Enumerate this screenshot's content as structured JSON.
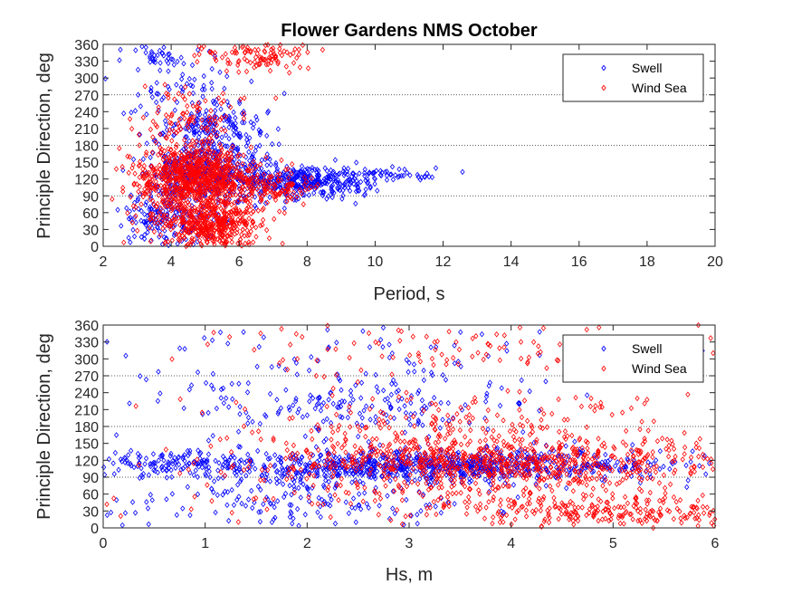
{
  "colors": {
    "swell": "#0000ff",
    "wind_sea": "#ff0000",
    "axis": "#262626",
    "grid": "#262626"
  },
  "chart_data": [
    {
      "type": "scatter",
      "title": "Flower Gardens NMS October",
      "xlabel": "Period, s",
      "ylabel": "Principle Direction, deg",
      "xlim": [
        2,
        20
      ],
      "ylim": [
        0,
        360
      ],
      "xticks": [
        2,
        4,
        6,
        8,
        10,
        12,
        14,
        16,
        18,
        20
      ],
      "yticks": [
        0,
        30,
        60,
        90,
        120,
        150,
        180,
        210,
        240,
        270,
        300,
        330,
        360
      ],
      "grid_y_dotted": [
        90,
        180,
        270
      ],
      "legend": {
        "position": "top-right",
        "entries": [
          "Swell",
          "Wind Sea"
        ]
      },
      "series": [
        {
          "name": "Swell",
          "marker": "diamond",
          "clusters": [
            {
              "xc": 5.0,
              "xs": 0.9,
              "yc": 135,
              "ys": 30,
              "n": 420
            },
            {
              "xc": 7.8,
              "xs": 1.1,
              "yc": 115,
              "ys": 14,
              "n": 380
            },
            {
              "xc": 10.5,
              "xs": 1.2,
              "yc": 128,
              "ys": 5,
              "n": 45
            },
            {
              "xc": 5.3,
              "xs": 0.9,
              "yc": 215,
              "ys": 18,
              "n": 130
            },
            {
              "xc": 4.0,
              "xs": 0.7,
              "yc": 50,
              "ys": 28,
              "n": 180
            },
            {
              "xc": 4.5,
              "xs": 0.9,
              "yc": 275,
              "ys": 22,
              "n": 60
            },
            {
              "xc": 3.8,
              "xs": 0.6,
              "yc": 340,
              "ys": 12,
              "n": 40
            }
          ]
        },
        {
          "name": "Wind Sea",
          "marker": "diamond",
          "clusters": [
            {
              "xc": 4.9,
              "xs": 0.8,
              "yc": 125,
              "ys": 25,
              "n": 650
            },
            {
              "xc": 5.2,
              "xs": 0.7,
              "yc": 40,
              "ys": 22,
              "n": 420
            },
            {
              "xc": 4.0,
              "xs": 0.7,
              "yc": 95,
              "ys": 45,
              "n": 220
            },
            {
              "xc": 6.5,
              "xs": 0.8,
              "yc": 340,
              "ys": 14,
              "n": 110
            },
            {
              "xc": 4.5,
              "xs": 0.9,
              "yc": 230,
              "ys": 25,
              "n": 90
            },
            {
              "xc": 7.0,
              "xs": 0.7,
              "yc": 105,
              "ys": 15,
              "n": 110
            }
          ]
        }
      ]
    },
    {
      "type": "scatter",
      "title": "",
      "xlabel": "Hs, m",
      "ylabel": "Principle Direction, deg",
      "xlim": [
        0,
        6
      ],
      "ylim": [
        0,
        360
      ],
      "xticks": [
        0,
        1,
        2,
        3,
        4,
        5,
        6
      ],
      "yticks": [
        0,
        30,
        60,
        90,
        120,
        150,
        180,
        210,
        240,
        270,
        300,
        330,
        360
      ],
      "grid_y_dotted": [
        90,
        180,
        270
      ],
      "legend": {
        "position": "top-right",
        "entries": [
          "Swell",
          "Wind Sea"
        ]
      },
      "series": [
        {
          "name": "Swell",
          "marker": "diamond",
          "clusters": [
            {
              "xc": 3.2,
              "xs": 1.2,
              "yc": 110,
              "ys": 14,
              "n": 850
            },
            {
              "xc": 0.6,
              "xs": 0.35,
              "yc": 115,
              "ys": 12,
              "n": 90
            },
            {
              "xc": 2.4,
              "xs": 0.8,
              "yc": 215,
              "ys": 28,
              "n": 170
            },
            {
              "xc": 2.0,
              "xs": 1.0,
              "yc": 50,
              "ys": 28,
              "n": 170
            },
            {
              "xc": 2.5,
              "xs": 1.5,
              "yc": 300,
              "ys": 40,
              "n": 90
            }
          ]
        },
        {
          "name": "Wind Sea",
          "marker": "diamond",
          "clusters": [
            {
              "xc": 3.9,
              "xs": 1.1,
              "yc": 115,
              "ys": 22,
              "n": 700
            },
            {
              "xc": 5.0,
              "xs": 0.7,
              "yc": 30,
              "ys": 18,
              "n": 260
            },
            {
              "xc": 3.5,
              "xs": 1.2,
              "yc": 180,
              "ys": 30,
              "n": 200
            },
            {
              "xc": 4.0,
              "xs": 1.3,
              "yc": 320,
              "ys": 30,
              "n": 130
            },
            {
              "xc": 3.0,
              "xs": 1.2,
              "yc": 60,
              "ys": 30,
              "n": 140
            }
          ]
        }
      ]
    }
  ]
}
